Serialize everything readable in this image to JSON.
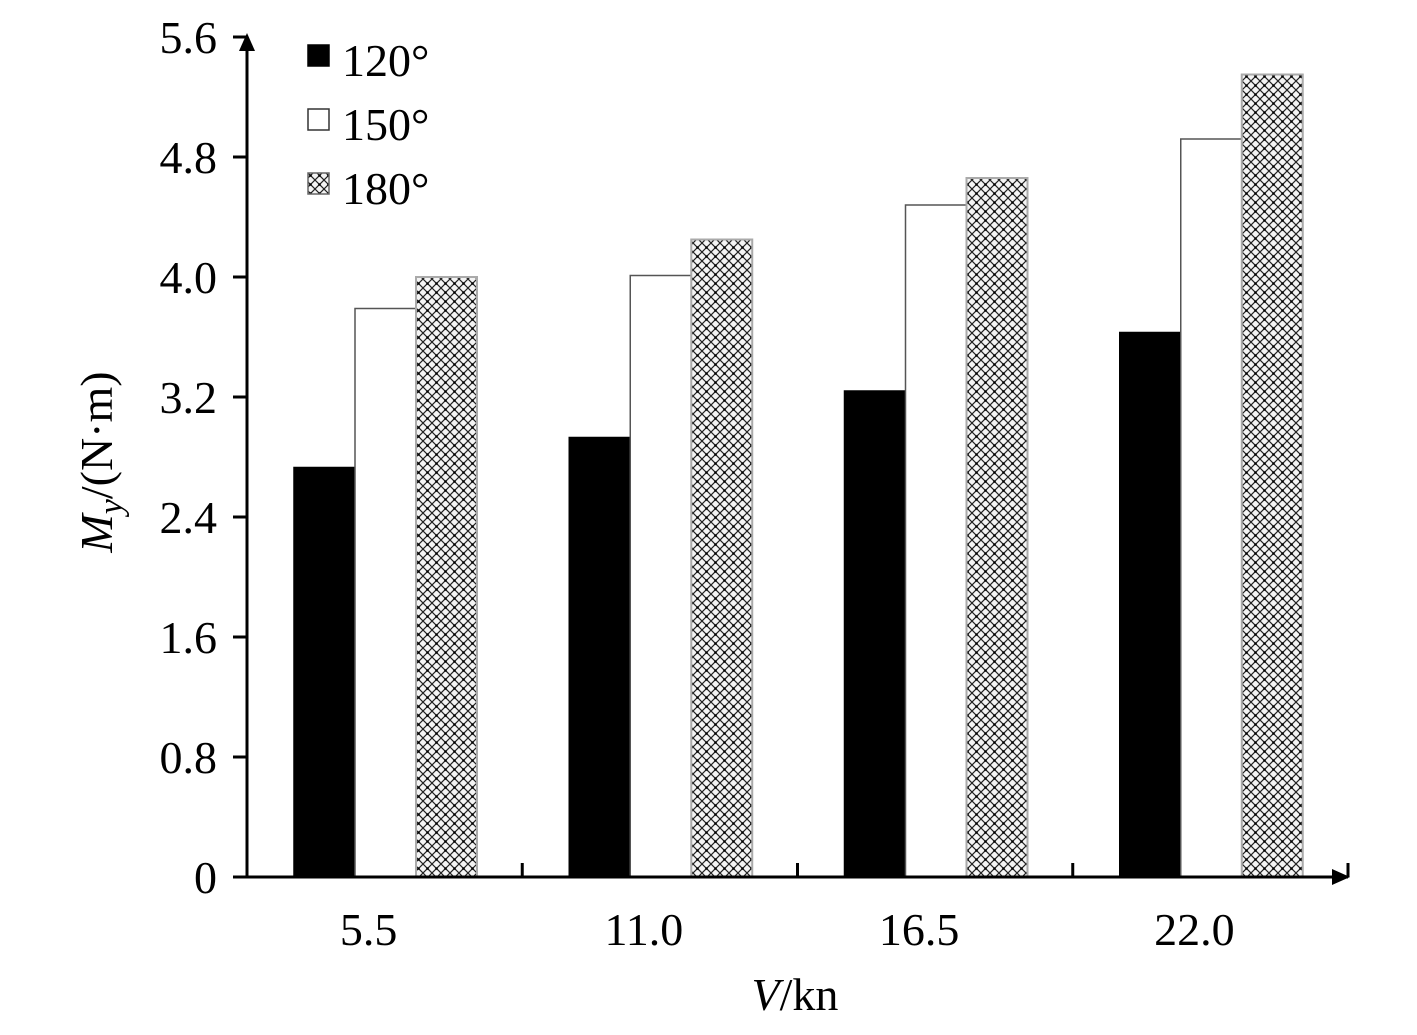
{
  "chart_data": {
    "type": "bar",
    "categories": [
      "5.5",
      "11.0",
      "16.5",
      "22.0"
    ],
    "series": [
      {
        "name": "120°",
        "values": [
          2.73,
          2.93,
          3.24,
          3.63
        ],
        "fill": "solid-black"
      },
      {
        "name": "150°",
        "values": [
          3.79,
          4.01,
          4.48,
          4.92
        ],
        "fill": "white"
      },
      {
        "name": "180°",
        "values": [
          4.0,
          4.25,
          4.66,
          5.35
        ],
        "fill": "crosshatch"
      }
    ],
    "ylim": [
      0,
      5.6
    ],
    "yticks": [
      "0",
      "0.8",
      "1.6",
      "2.4",
      "3.2",
      "4.0",
      "4.8",
      "5.6"
    ],
    "ytick_values": [
      0,
      0.8,
      1.6,
      2.4,
      3.2,
      4.0,
      4.8,
      5.6
    ],
    "xlabel": {
      "italic": "V",
      "rest": "/kn"
    },
    "ylabel": {
      "italic": "M",
      "sub": "y",
      "rest": "/(N·m)"
    },
    "legend": "top-left",
    "grid": false,
    "colors": {
      "axis": "#000000",
      "bar_dark": "#000000",
      "bar_light": "#ffffff",
      "bar_edge": "#555555"
    }
  }
}
